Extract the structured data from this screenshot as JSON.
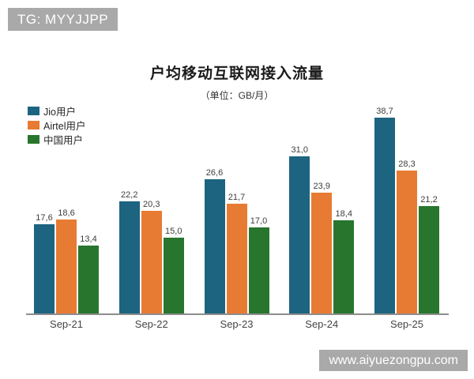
{
  "watermarks": {
    "top_left": "TG: MYYJJPP",
    "bottom_right": "www.aiyuezongpu.com",
    "badge_bg": "#A9A9A9",
    "badge_text_color": "#FFFFFF"
  },
  "chart_data": {
    "type": "bar",
    "title": "户均移动互联网接入流量",
    "subtitle": "（单位：GB/月）",
    "categories": [
      "Sep-21",
      "Sep-22",
      "Sep-23",
      "Sep-24",
      "Sep-25"
    ],
    "series": [
      {
        "name": "Jio用户",
        "color": "#1D6480",
        "values": [
          17.6,
          22.2,
          26.6,
          31.0,
          38.7
        ],
        "labels": [
          "17,6",
          "22,2",
          "26,6",
          "31,0",
          "38,7"
        ]
      },
      {
        "name": "Airtel用户",
        "color": "#E87B33",
        "values": [
          18.6,
          20.3,
          21.7,
          23.9,
          28.3
        ],
        "labels": [
          "18,6",
          "20,3",
          "21,7",
          "23,9",
          "28,3"
        ]
      },
      {
        "name": "中国用户",
        "color": "#28752E",
        "values": [
          13.4,
          15.0,
          17.0,
          18.4,
          21.2
        ],
        "labels": [
          "13,4",
          "15,0",
          "17,0",
          "18,4",
          "21,2"
        ]
      }
    ],
    "legend_position": "top-left",
    "grid": false,
    "ylim": [
      0,
      40.6
    ],
    "value_label_decimal_separator": ",",
    "axis_line_color": "#8D8D8D"
  }
}
